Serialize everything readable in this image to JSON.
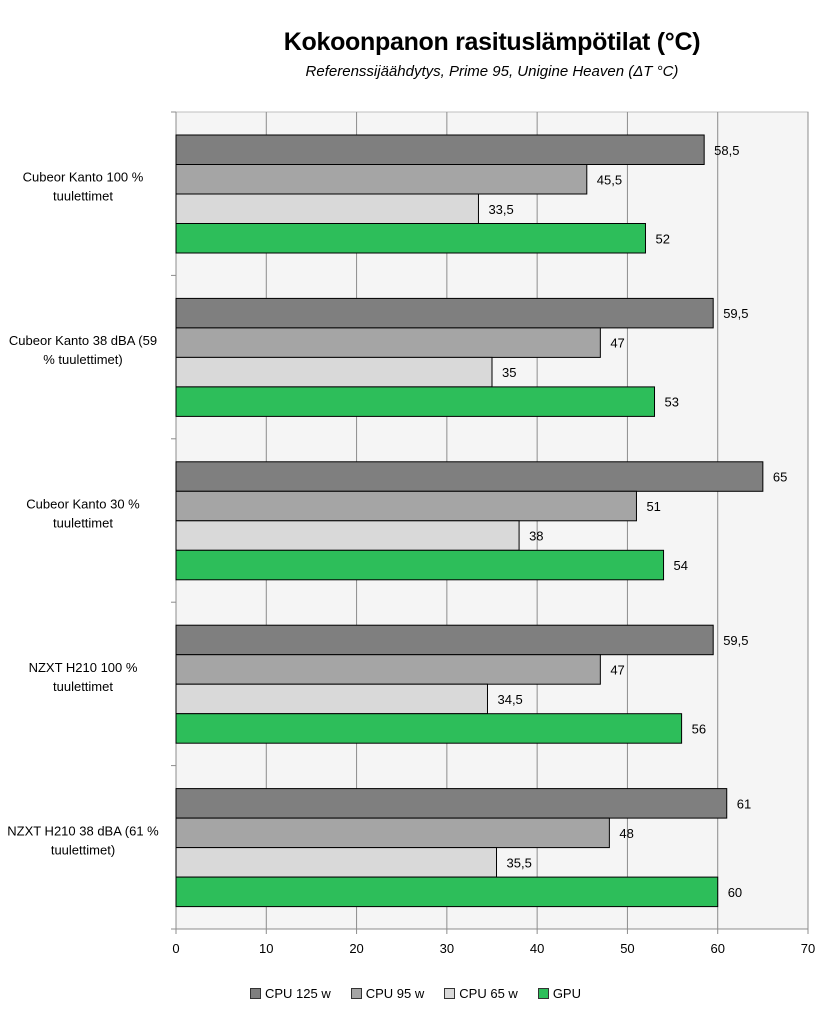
{
  "chart_data": {
    "type": "bar",
    "orientation": "horizontal",
    "title": "Kokoonpanon rasituslämpötilat (°C)",
    "subtitle": "Referenssijäähdytys, Prime 95, Unigine Heaven (ΔT °C)",
    "categories": [
      "Cubeor Kanto 100 % tuulettimet",
      "Cubeor Kanto 38 dBA (59 % tuulettimet)",
      "Cubeor Kanto 30 % tuulettimet",
      "NZXT H210 100 % tuulettimet",
      "NZXT H210 38 dBA (61 % tuulettimet)"
    ],
    "category_lines": [
      [
        "Cubeor Kanto 100 %",
        "tuulettimet"
      ],
      [
        "Cubeor Kanto 38 dBA (59",
        "% tuulettimet)"
      ],
      [
        "Cubeor Kanto 30 %",
        "tuulettimet"
      ],
      [
        "NZXT H210 100 %",
        "tuulettimet"
      ],
      [
        "NZXT H210 38 dBA (61 %",
        "tuulettimet)"
      ]
    ],
    "series": [
      {
        "name": "CPU 125 w",
        "color": "#7f7f7f",
        "values": [
          58.5,
          59.5,
          65,
          59.5,
          61
        ],
        "labels": [
          "58,5",
          "59,5",
          "65",
          "59,5",
          "61"
        ]
      },
      {
        "name": "CPU 95 w",
        "color": "#a5a5a5",
        "values": [
          45.5,
          47,
          51,
          47,
          48
        ],
        "labels": [
          "45,5",
          "47",
          "51",
          "47",
          "48"
        ]
      },
      {
        "name": "CPU 65 w",
        "color": "#d9d9d9",
        "values": [
          33.5,
          35,
          38,
          34.5,
          35.5
        ],
        "labels": [
          "33,5",
          "35",
          "38",
          "34,5",
          "35,5"
        ]
      },
      {
        "name": "GPU",
        "color": "#2dbe5a",
        "values": [
          52,
          53,
          54,
          56,
          60
        ],
        "labels": [
          "52",
          "53",
          "54",
          "56",
          "60"
        ]
      }
    ],
    "xlim": [
      0,
      70
    ],
    "xticks": [
      "0",
      "10",
      "20",
      "30",
      "40",
      "50",
      "60",
      "70"
    ],
    "grid": true,
    "legend_position": "bottom",
    "plot_background": "#f5f5f5"
  }
}
